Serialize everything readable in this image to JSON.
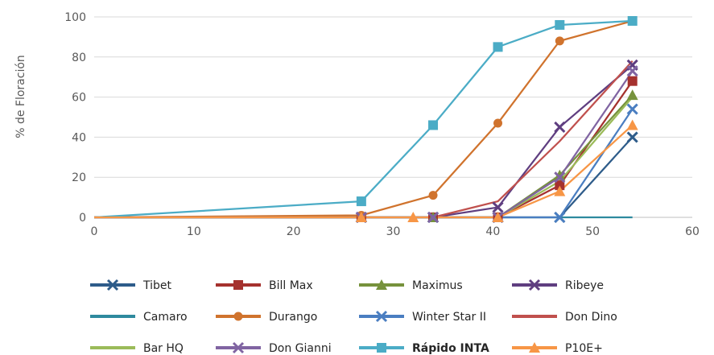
{
  "chart_data": {
    "type": "line",
    "title": "",
    "xlabel": "",
    "ylabel": "% de Floración",
    "xlim": [
      0,
      60
    ],
    "ylim": [
      0,
      100
    ],
    "x_ticks": [
      "0",
      "10",
      "20",
      "30",
      "40",
      "50",
      "60"
    ],
    "y_ticks": [
      "0",
      "20",
      "40",
      "60",
      "80",
      "100"
    ],
    "grid": "horizontal",
    "legend_position": "bottom",
    "series": [
      {
        "name": "Tibet",
        "color": "#2E5C8A",
        "marker": "x",
        "bold": false,
        "x": [
          0,
          26.8,
          34,
          40.5,
          46.7,
          54
        ],
        "y": [
          0,
          0,
          0,
          0,
          0,
          40
        ]
      },
      {
        "name": "Bill Max",
        "color": "#A5312E",
        "marker": "square",
        "bold": false,
        "x": [
          0,
          26.8,
          34,
          40.5,
          46.7,
          54
        ],
        "y": [
          0,
          0,
          0,
          0,
          16,
          68
        ]
      },
      {
        "name": "Maximus",
        "color": "#76923C",
        "marker": "triangle",
        "bold": false,
        "x": [
          0,
          26.8,
          34,
          40.5,
          46.7,
          54
        ],
        "y": [
          0,
          0,
          0,
          0,
          21,
          61
        ]
      },
      {
        "name": "Ribeye",
        "color": "#5F3E80",
        "marker": "x",
        "bold": false,
        "x": [
          0,
          26.8,
          34,
          40.5,
          46.7,
          54
        ],
        "y": [
          0,
          0,
          0,
          5,
          45,
          76
        ]
      },
      {
        "name": "Camaro",
        "color": "#2E8A9E",
        "marker": "none",
        "bold": false,
        "x": [
          0,
          26.8,
          34,
          40.5,
          46.7,
          54
        ],
        "y": [
          0,
          0,
          0,
          0,
          0,
          0
        ]
      },
      {
        "name": "Durango",
        "color": "#D0732D",
        "marker": "circle",
        "bold": false,
        "x": [
          0,
          26.8,
          34,
          40.5,
          46.7,
          54
        ],
        "y": [
          0,
          1,
          11,
          47,
          88,
          98
        ]
      },
      {
        "name": "Winter Star II",
        "color": "#4A7EC1",
        "marker": "x",
        "bold": false,
        "x": [
          0,
          26.8,
          34,
          40.5,
          46.7,
          54
        ],
        "y": [
          0,
          0,
          0,
          0,
          0,
          54
        ]
      },
      {
        "name": "Don Dino",
        "color": "#C0504D",
        "marker": "none",
        "bold": false,
        "x": [
          0,
          26.8,
          34,
          40.5,
          46.7,
          54
        ],
        "y": [
          0,
          0,
          0,
          8,
          38,
          78
        ]
      },
      {
        "name": "Bar HQ",
        "color": "#9BBB59",
        "marker": "none",
        "bold": false,
        "x": [
          0,
          26.8,
          34,
          40.5,
          46.7,
          54
        ],
        "y": [
          0,
          0,
          0,
          0,
          18,
          60
        ]
      },
      {
        "name": "Don Gianni",
        "color": "#8064A2",
        "marker": "x",
        "bold": false,
        "x": [
          0,
          26.8,
          34,
          40.5,
          46.7,
          54
        ],
        "y": [
          0,
          0,
          0,
          0,
          20,
          73
        ]
      },
      {
        "name": "Rápido INTA",
        "color": "#4BACC6",
        "marker": "square",
        "bold": true,
        "x": [
          0,
          26.8,
          34,
          40.5,
          46.7,
          54
        ],
        "y": [
          0,
          8,
          46,
          85,
          96,
          98
        ]
      },
      {
        "name": "P10E+",
        "color": "#F79646",
        "marker": "triangle",
        "bold": false,
        "x": [
          0,
          26.8,
          32,
          40.5,
          46.7,
          54
        ],
        "y": [
          0,
          0,
          0,
          0,
          13,
          46
        ]
      }
    ]
  }
}
